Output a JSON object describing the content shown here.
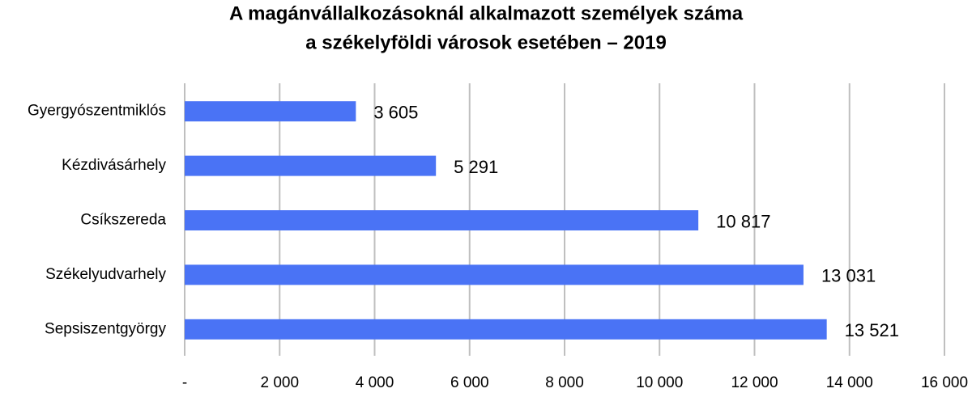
{
  "chart_data": {
    "type": "bar",
    "orientation": "horizontal",
    "title": [
      "A magánvállalkozásoknál alkalmazott személyek száma",
      "a székelyföldi városok esetében – 2019"
    ],
    "categories": [
      "Gyergyószentmiklós",
      "Kézdivásárhely",
      "Csíkszereda",
      "Székelyudvarhely",
      "Sepsiszentgyörgy"
    ],
    "values": [
      3605,
      5291,
      10817,
      13031,
      13521
    ],
    "value_labels": [
      "3 605",
      "5 291",
      "10 817",
      "13 031",
      "13 521"
    ],
    "color": "#4a73f5",
    "xlim": [
      0,
      16000
    ],
    "xticks": [
      {
        "value": 0,
        "label": "-"
      },
      {
        "value": 2000,
        "label": "2 000"
      },
      {
        "value": 4000,
        "label": "4 000"
      },
      {
        "value": 6000,
        "label": "6 000"
      },
      {
        "value": 8000,
        "label": "8 000"
      },
      {
        "value": 10000,
        "label": "10 000"
      },
      {
        "value": 12000,
        "label": "12 000"
      },
      {
        "value": 14000,
        "label": "14 000"
      },
      {
        "value": 16000,
        "label": "16 000"
      }
    ],
    "grid": true
  }
}
